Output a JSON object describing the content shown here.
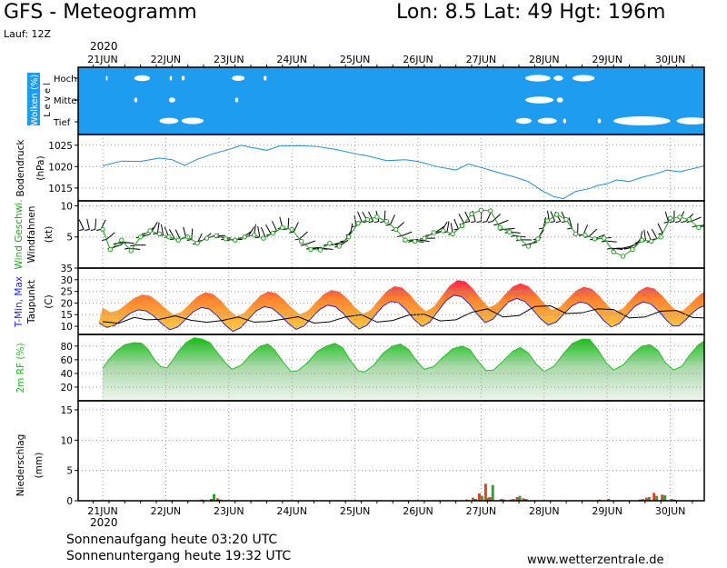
{
  "header": {
    "title": "GFS - Meteogramm",
    "location": "Lon: 8.5  Lat: 49  Hgt: 196m",
    "run": "Lauf: 12Z",
    "year_top": "2020",
    "year_bottom": "2020"
  },
  "footer": {
    "sunrise": "Sonnenaufgang heute 03:20 UTC",
    "sunset": "Sonnenuntergang heute 19:32 UTC",
    "site": "www.wetterzentrale.de"
  },
  "colors": {
    "sky": "#1e9cf0",
    "pressure": "#1e8fd8",
    "wind_speed": "#22a022",
    "dewpoint": "#000000",
    "tmin": "#2222dd",
    "tmax_red": "#ff2050",
    "humidity": "#22c022",
    "precip_red": "#e04020",
    "precip_green": "#33a033"
  },
  "chart_data": {
    "type": "line",
    "days": [
      "21JUN",
      "22JUN",
      "23JUN",
      "24JUN",
      "25JUN",
      "26JUN",
      "27JUN",
      "28JUN",
      "29JUN",
      "30JUN"
    ],
    "x_domain_days": [
      0,
      9.8
    ],
    "clouds": {
      "ylabel": "Wolken (%)",
      "level_label": "L e v e l",
      "levels": [
        "Hoch",
        "Mittel",
        "Tief"
      ],
      "hoch": [
        [
          0.05,
          0.08
        ],
        [
          0.5,
          0.75
        ],
        [
          1.06,
          1.1
        ],
        [
          1.25,
          1.3
        ],
        [
          2.05,
          2.25
        ],
        [
          2.55,
          2.6
        ],
        [
          6.7,
          7.1
        ],
        [
          7.15,
          7.3
        ],
        [
          7.45,
          7.8
        ]
      ],
      "mittel": [
        [
          0.5,
          0.55
        ],
        [
          1.05,
          1.15
        ],
        [
          2.1,
          2.15
        ],
        [
          6.7,
          7.15
        ],
        [
          7.2,
          7.3
        ]
      ],
      "tief": [
        [
          0.9,
          1.2
        ],
        [
          1.25,
          1.6
        ],
        [
          6.55,
          6.8
        ],
        [
          6.9,
          7.2
        ],
        [
          7.3,
          7.35
        ],
        [
          7.85,
          7.9
        ],
        [
          8.1,
          9.0
        ],
        [
          9.1,
          9.6
        ]
      ]
    },
    "pressure": {
      "ylabel": "Bodendruck",
      "unit": "(hPa)",
      "yticks": [
        1015,
        1020,
        1025
      ],
      "ylim": [
        1012,
        1027.5
      ],
      "points": [
        [
          0,
          1020.2
        ],
        [
          0.3,
          1021.3
        ],
        [
          0.6,
          1021.2
        ],
        [
          0.9,
          1022.0
        ],
        [
          1.1,
          1021.6
        ],
        [
          1.3,
          1020.3
        ],
        [
          1.5,
          1021.7
        ],
        [
          1.75,
          1023
        ],
        [
          2.0,
          1024
        ],
        [
          2.2,
          1025
        ],
        [
          2.35,
          1024.5
        ],
        [
          2.6,
          1023.8
        ],
        [
          2.8,
          1024.8
        ],
        [
          3.1,
          1024.9
        ],
        [
          3.4,
          1024.7
        ],
        [
          3.7,
          1024
        ],
        [
          4.0,
          1023
        ],
        [
          4.2,
          1022.5
        ],
        [
          4.5,
          1021.4
        ],
        [
          4.8,
          1021.6
        ],
        [
          5.0,
          1021.2
        ],
        [
          5.3,
          1020
        ],
        [
          5.6,
          1019.2
        ],
        [
          5.8,
          1020.6
        ],
        [
          6.0,
          1019.8
        ],
        [
          6.3,
          1018.5
        ],
        [
          6.55,
          1017.5
        ],
        [
          6.75,
          1016.5
        ],
        [
          6.95,
          1014.5
        ],
        [
          7.15,
          1013
        ],
        [
          7.3,
          1012.5
        ],
        [
          7.5,
          1014.2
        ],
        [
          7.7,
          1014.8
        ],
        [
          7.85,
          1015.6
        ],
        [
          8.0,
          1016.0
        ],
        [
          8.15,
          1016.9
        ],
        [
          8.35,
          1016.5
        ],
        [
          8.55,
          1017.5
        ],
        [
          8.75,
          1018.2
        ],
        [
          8.95,
          1019.2
        ],
        [
          9.15,
          1018.8
        ],
        [
          9.35,
          1019.5
        ],
        [
          9.55,
          1020.2
        ],
        [
          9.7,
          1019.8
        ],
        [
          9.85,
          1020.5
        ],
        [
          10.0,
          1019.8
        ],
        [
          10.2,
          1018.8
        ],
        [
          10.35,
          1019.2
        ],
        [
          10.55,
          1020.2
        ],
        [
          10.75,
          1021.0
        ],
        [
          10.95,
          1020.5
        ]
      ]
    },
    "wind": {
      "ylabel_speed": "Wind Geschwi.",
      "ylabel_barbs": "Windfahnen",
      "unit": "(kt)",
      "yticks": [
        5,
        10
      ],
      "ylim": [
        0,
        10.8
      ],
      "speed": [
        [
          0,
          6.2
        ],
        [
          0.12,
          3
        ],
        [
          0.3,
          4.5
        ],
        [
          0.45,
          2.8
        ],
        [
          0.6,
          5
        ],
        [
          0.75,
          6
        ],
        [
          0.9,
          5.5
        ],
        [
          1.05,
          5
        ],
        [
          1.2,
          4.5
        ],
        [
          1.35,
          5
        ],
        [
          1.5,
          4
        ],
        [
          1.65,
          4.8
        ],
        [
          1.8,
          5.2
        ],
        [
          1.95,
          4.7
        ],
        [
          2.1,
          4.5
        ],
        [
          2.25,
          5
        ],
        [
          2.4,
          5.3
        ],
        [
          2.55,
          4.8
        ],
        [
          2.7,
          5.6
        ],
        [
          2.85,
          6.5
        ],
        [
          3.0,
          6.2
        ],
        [
          3.15,
          4.3
        ],
        [
          3.3,
          3
        ],
        [
          3.45,
          2.9
        ],
        [
          3.6,
          4
        ],
        [
          3.75,
          3.5
        ],
        [
          3.9,
          5
        ],
        [
          4.05,
          7.2
        ],
        [
          4.2,
          7.8
        ],
        [
          4.35,
          8.2
        ],
        [
          4.5,
          7.5
        ],
        [
          4.65,
          6.2
        ],
        [
          4.8,
          4.5
        ],
        [
          4.95,
          4.3
        ],
        [
          5.1,
          4.8
        ],
        [
          5.25,
          5.7
        ],
        [
          5.4,
          6
        ],
        [
          5.55,
          5.5
        ],
        [
          5.7,
          6.8
        ],
        [
          5.85,
          8.7
        ],
        [
          6.0,
          9.3
        ],
        [
          6.15,
          9.2
        ],
        [
          6.3,
          6.5
        ],
        [
          6.45,
          5.8
        ],
        [
          6.6,
          4.8
        ],
        [
          6.75,
          3.5
        ],
        [
          6.9,
          4.7
        ],
        [
          7.05,
          7.6
        ],
        [
          7.2,
          8.6
        ],
        [
          7.35,
          7.8
        ],
        [
          7.5,
          5.5
        ],
        [
          7.65,
          5.3
        ],
        [
          7.8,
          4.7
        ],
        [
          7.95,
          4.8
        ],
        [
          8.1,
          2.6
        ],
        [
          8.25,
          1.9
        ],
        [
          8.4,
          3
        ],
        [
          8.55,
          4.5
        ],
        [
          8.7,
          4.3
        ],
        [
          8.85,
          5
        ],
        [
          9.0,
          8
        ],
        [
          9.15,
          8.2
        ],
        [
          9.3,
          7.8
        ],
        [
          9.45,
          6.5
        ],
        [
          9.6,
          7
        ],
        [
          9.75,
          6
        ],
        [
          9.9,
          4.5
        ]
      ],
      "barb_spacing_days": 0.09
    },
    "temperature": {
      "ylabel_t": "T-Min, Max",
      "ylabel_td": "Taupunkt",
      "unit": "(C)",
      "yticks": [
        10,
        15,
        20,
        25,
        30,
        35
      ],
      "ylim": [
        6.5,
        35
      ],
      "dewpoint": [
        [
          0,
          12
        ],
        [
          0.25,
          11.3
        ],
        [
          0.5,
          13.8
        ],
        [
          0.7,
          12.8
        ],
        [
          0.9,
          13
        ],
        [
          1.15,
          14.5
        ],
        [
          1.4,
          12.6
        ],
        [
          1.65,
          11.7
        ],
        [
          1.9,
          12.5
        ],
        [
          2.15,
          14
        ],
        [
          2.4,
          11.8
        ],
        [
          2.6,
          12
        ],
        [
          2.85,
          13
        ],
        [
          3.1,
          14.1
        ],
        [
          3.35,
          11.4
        ],
        [
          3.6,
          11.9
        ],
        [
          3.85,
          14
        ],
        [
          4.1,
          15
        ],
        [
          4.35,
          11.8
        ],
        [
          4.6,
          12.5
        ],
        [
          4.85,
          14.8
        ],
        [
          5.1,
          15.2
        ],
        [
          5.35,
          12.3
        ],
        [
          5.6,
          12.8
        ],
        [
          5.85,
          16
        ],
        [
          6.1,
          17.5
        ],
        [
          6.35,
          14
        ],
        [
          6.6,
          14.6
        ],
        [
          6.85,
          18.5
        ],
        [
          7.1,
          18.8
        ],
        [
          7.35,
          15.5
        ],
        [
          7.6,
          15.8
        ],
        [
          7.85,
          17.5
        ],
        [
          8.1,
          17.2
        ],
        [
          8.35,
          13.6
        ],
        [
          8.6,
          14
        ],
        [
          8.85,
          16.5
        ],
        [
          9.1,
          16.8
        ],
        [
          9.35,
          13.8
        ],
        [
          9.6,
          13.5
        ],
        [
          9.8,
          12
        ]
      ],
      "daily": [
        [
          0,
          16,
          23
        ],
        [
          1,
          15,
          24
        ],
        [
          2,
          14,
          25
        ],
        [
          3,
          15,
          25
        ],
        [
          4,
          15,
          26
        ],
        [
          5,
          16,
          28
        ],
        [
          6,
          18,
          31
        ],
        [
          7,
          17,
          27
        ],
        [
          8,
          16,
          27
        ],
        [
          9,
          16,
          27
        ],
        [
          9.8,
          17,
          25
        ]
      ]
    },
    "humidity": {
      "ylabel": "2m RF (%)",
      "yticks": [
        20,
        40,
        60,
        80
      ],
      "ylim": [
        0,
        97
      ],
      "points": [
        [
          0,
          48
        ],
        [
          0.1,
          60
        ],
        [
          0.22,
          73
        ],
        [
          0.35,
          82
        ],
        [
          0.5,
          85
        ],
        [
          0.62,
          84
        ],
        [
          0.72,
          75
        ],
        [
          0.82,
          60
        ],
        [
          0.92,
          50
        ],
        [
          1.02,
          48
        ],
        [
          1.1,
          58
        ],
        [
          1.2,
          72
        ],
        [
          1.32,
          85
        ],
        [
          1.45,
          92
        ],
        [
          1.58,
          90
        ],
        [
          1.7,
          85
        ],
        [
          1.82,
          70
        ],
        [
          1.95,
          55
        ],
        [
          2.05,
          46
        ],
        [
          2.2,
          52
        ],
        [
          2.35,
          68
        ],
        [
          2.5,
          80
        ],
        [
          2.62,
          83
        ],
        [
          2.72,
          75
        ],
        [
          2.85,
          58
        ],
        [
          2.98,
          43
        ],
        [
          3.1,
          44
        ],
        [
          3.25,
          56
        ],
        [
          3.4,
          72
        ],
        [
          3.55,
          80
        ],
        [
          3.68,
          84
        ],
        [
          3.8,
          78
        ],
        [
          3.92,
          60
        ],
        [
          4.05,
          44
        ],
        [
          4.15,
          42
        ],
        [
          4.3,
          52
        ],
        [
          4.45,
          70
        ],
        [
          4.6,
          80
        ],
        [
          4.72,
          83
        ],
        [
          4.85,
          75
        ],
        [
          4.98,
          58
        ],
        [
          5.1,
          46
        ],
        [
          5.25,
          50
        ],
        [
          5.4,
          64
        ],
        [
          5.55,
          76
        ],
        [
          5.7,
          80
        ],
        [
          5.82,
          75
        ],
        [
          5.95,
          58
        ],
        [
          6.08,
          44
        ],
        [
          6.2,
          45
        ],
        [
          6.35,
          58
        ],
        [
          6.5,
          72
        ],
        [
          6.62,
          78
        ],
        [
          6.75,
          70
        ],
        [
          6.88,
          53
        ],
        [
          7.0,
          43
        ],
        [
          7.15,
          50
        ],
        [
          7.3,
          68
        ],
        [
          7.45,
          84
        ],
        [
          7.6,
          90
        ],
        [
          7.72,
          90
        ],
        [
          7.85,
          75
        ],
        [
          7.98,
          56
        ],
        [
          8.1,
          45
        ],
        [
          8.25,
          52
        ],
        [
          8.4,
          68
        ],
        [
          8.55,
          80
        ],
        [
          8.68,
          82
        ],
        [
          8.8,
          74
        ],
        [
          8.92,
          56
        ],
        [
          9.05,
          45
        ],
        [
          9.18,
          50
        ],
        [
          9.3,
          66
        ],
        [
          9.45,
          82
        ],
        [
          9.58,
          90
        ],
        [
          9.7,
          87
        ],
        [
          9.8,
          80
        ],
        [
          9.9,
          70
        ],
        [
          10.0,
          62
        ],
        [
          10.1,
          50
        ],
        [
          10.2,
          62
        ],
        [
          10.3,
          57
        ],
        [
          10.45,
          62
        ],
        [
          10.6,
          73
        ],
        [
          10.72,
          76
        ],
        [
          10.85,
          70
        ],
        [
          10.95,
          58
        ],
        [
          11.05,
          50
        ]
      ]
    },
    "precip": {
      "ylabel": "Niederschlag",
      "unit": "(mm)",
      "yticks": [
        0,
        5,
        10,
        15
      ],
      "ylim": [
        0,
        16.5
      ],
      "bars": [
        [
          0.05,
          0.1,
          0.1
        ],
        [
          0.25,
          0.1,
          0.1
        ],
        [
          1.05,
          0.1,
          0.1
        ],
        [
          1.55,
          0.2,
          0.1
        ],
        [
          1.7,
          0.3,
          1.1
        ],
        [
          1.8,
          0.4,
          0.2
        ],
        [
          5.75,
          0.2,
          0.1
        ],
        [
          5.85,
          0.5,
          0.3
        ],
        [
          5.95,
          1.2,
          0.8
        ],
        [
          6.05,
          2.8,
          0.5
        ],
        [
          6.12,
          0.6,
          2.6
        ],
        [
          6.3,
          0.3,
          0.2
        ],
        [
          6.45,
          0.2,
          0.3
        ],
        [
          6.55,
          0.6,
          0.8
        ],
        [
          6.65,
          0.4,
          0.3
        ],
        [
          7.85,
          0.2,
          0.1
        ],
        [
          8.0,
          0.3,
          0.1
        ],
        [
          8.5,
          0.2,
          0.3
        ],
        [
          8.6,
          0.5,
          0.6
        ],
        [
          8.72,
          1.3,
          0.8
        ],
        [
          8.85,
          1.0,
          0.9
        ],
        [
          9.0,
          0.3,
          0.2
        ]
      ]
    }
  }
}
